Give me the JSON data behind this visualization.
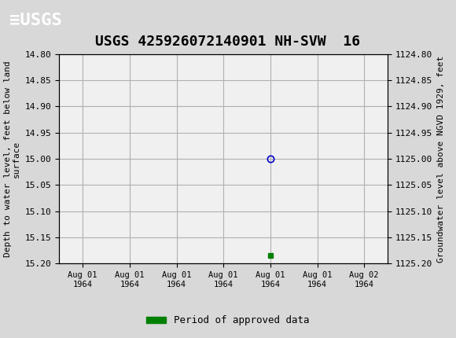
{
  "title": "USGS 425926072140901 NH-SVW  16",
  "title_fontsize": 13,
  "header_bg_color": "#1a6b3c",
  "plot_bg_color": "#f0f0f0",
  "fig_bg_color": "#d8d8d8",
  "left_ylabel": "Depth to water level, feet below land\nsurface",
  "right_ylabel": "Groundwater level above NGVD 1929, feet",
  "ylim_left": [
    14.8,
    15.2
  ],
  "ylim_right": [
    1124.8,
    1125.2
  ],
  "yticks_left": [
    14.8,
    14.85,
    14.9,
    14.95,
    15.0,
    15.05,
    15.1,
    15.15,
    15.2
  ],
  "yticks_right": [
    1124.8,
    1124.85,
    1124.9,
    1124.95,
    1125.0,
    1125.05,
    1125.1,
    1125.15,
    1125.2
  ],
  "data_point_x": 4.0,
  "data_point_y": 15.0,
  "data_point_color": "#0000cc",
  "data_point_marker": "o",
  "data_point_size": 6,
  "green_bar_x": 4.0,
  "green_bar_y": 15.185,
  "green_bar_color": "#008000",
  "green_bar_marker": "s",
  "green_bar_size": 5,
  "xtick_labels": [
    "Aug 01\n1964",
    "Aug 01\n1964",
    "Aug 01\n1964",
    "Aug 01\n1964",
    "Aug 01\n1964",
    "Aug 01\n1964",
    "Aug 02\n1964"
  ],
  "xtick_positions": [
    0,
    1,
    2,
    3,
    4,
    5,
    6
  ],
  "xlim": [
    -0.5,
    6.5
  ],
  "grid_color": "#b0b0b0",
  "legend_label": "Period of approved data",
  "legend_color": "#008000",
  "font_family": "monospace"
}
